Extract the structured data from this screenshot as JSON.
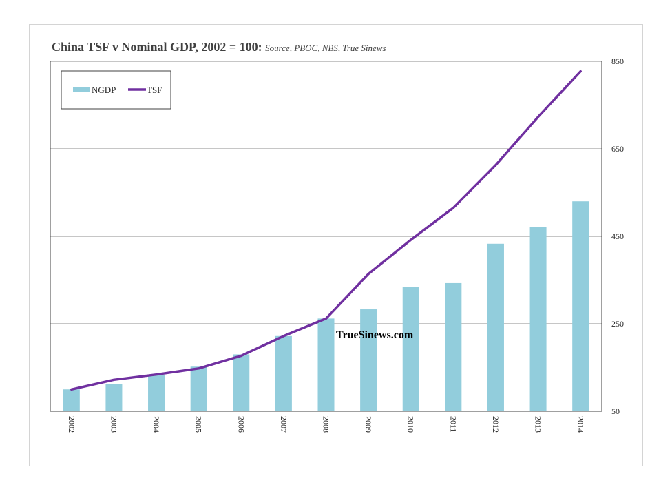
{
  "title": {
    "main": "China TSF v Nominal GDP, 2002  = 100:",
    "source": "Source, PBOC, NBS, True Sinews"
  },
  "watermark": "TrueSinews.com",
  "chart_data": {
    "type": "bar",
    "categories": [
      "2002",
      "2003",
      "2004",
      "2005",
      "2006",
      "2007",
      "2008",
      "2009",
      "2010",
      "2011",
      "2012",
      "2013",
      "2014"
    ],
    "series": [
      {
        "name": "NGDP",
        "type": "bar",
        "color": "#92CDDC",
        "values": [
          100,
          113,
          132,
          152,
          180,
          222,
          262,
          283,
          334,
          343,
          433,
          472,
          530
        ]
      },
      {
        "name": "TSF",
        "type": "line",
        "color": "#7030A0",
        "values": [
          100,
          122,
          134,
          148,
          177,
          222,
          262,
          364,
          442,
          515,
          613,
          723,
          827
        ]
      }
    ],
    "y_axis": {
      "position": "right",
      "ylim": [
        50,
        850
      ],
      "ticks": [
        50,
        250,
        450,
        650,
        850
      ]
    },
    "grid": true,
    "legend_position": "top-left"
  }
}
